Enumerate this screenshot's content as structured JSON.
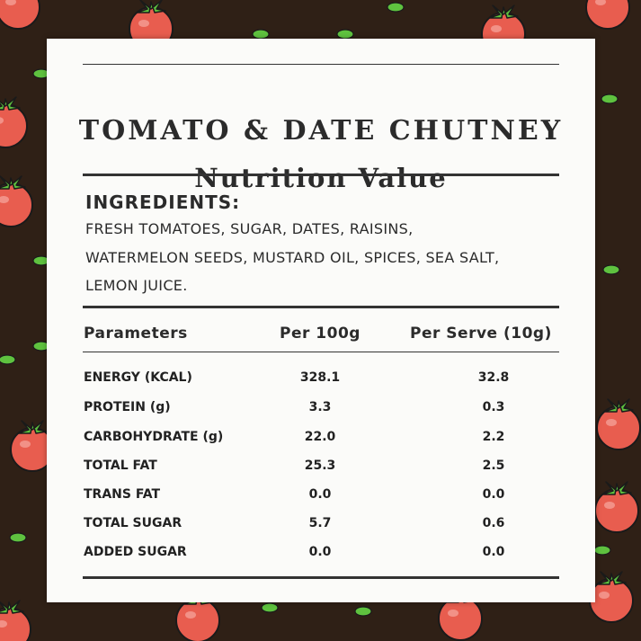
{
  "title": "TOMATO & DATE CHUTNEY",
  "subtitle": "Nutrition Value",
  "ingredients": {
    "heading": "INGREDIENTS:",
    "lines": [
      "FRESH TOMATOES, SUGAR, DATES, RAISINS,",
      "WATERMELON SEEDS, MUSTARD OIL, SPICES, SEA SALT,",
      "LEMON JUICE."
    ]
  },
  "table": {
    "headers": [
      "Parameters",
      "Per 100g",
      "Per Serve (10g)"
    ],
    "rows": [
      [
        "ENERGY (KCAL)",
        "328.1",
        "32.8"
      ],
      [
        "PROTEIN (g)",
        "3.3",
        "0.3"
      ],
      [
        "CARBOHYDRATE (g)",
        "22.0",
        "2.2"
      ],
      [
        "TOTAL FAT",
        "25.3",
        "2.5"
      ],
      [
        "TRANS FAT",
        "0.0",
        "0.0"
      ],
      [
        "TOTAL SUGAR",
        "5.7",
        "0.6"
      ],
      [
        "ADDED SUGAR",
        "0.0",
        "0.0"
      ]
    ]
  },
  "colors": {
    "background": "#2f2016",
    "tomato": "#e85d4f",
    "leaf": "#5fc23f",
    "card": "#fbfbf9",
    "text": "#2b2b2b"
  },
  "decoration": {
    "pattern_icon": "tomato-icon"
  }
}
